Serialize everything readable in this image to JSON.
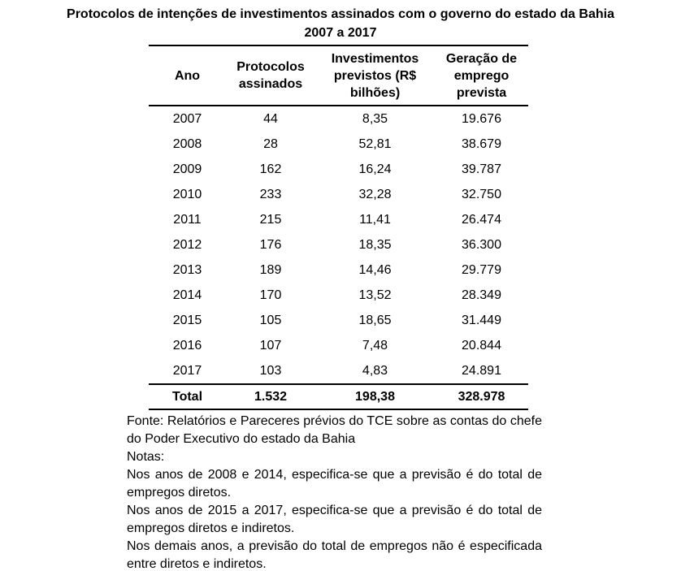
{
  "title": {
    "line1": "Protocolos de intenções de investimentos assinados com o governo do estado da Bahia",
    "line2": "2007 a 2017"
  },
  "chart_data": {
    "type": "table",
    "title": "Protocolos de intenções de investimentos assinados com o governo do estado da Bahia 2007 a 2017",
    "columns": [
      "Ano",
      "Protocolos assinados",
      "Investimentos previstos (R$ bilhões)",
      "Geração de emprego prevista"
    ],
    "rows": [
      [
        "2007",
        "44",
        "8,35",
        "19.676"
      ],
      [
        "2008",
        "28",
        "52,81",
        "38.679"
      ],
      [
        "2009",
        "162",
        "16,24",
        "39.787"
      ],
      [
        "2010",
        "233",
        "32,28",
        "32.750"
      ],
      [
        "2011",
        "215",
        "11,41",
        "26.474"
      ],
      [
        "2012",
        "176",
        "18,35",
        "36.300"
      ],
      [
        "2013",
        "189",
        "14,46",
        "29.779"
      ],
      [
        "2014",
        "170",
        "13,52",
        "28.349"
      ],
      [
        "2015",
        "105",
        "18,65",
        "31.449"
      ],
      [
        "2016",
        "107",
        "7,48",
        "20.844"
      ],
      [
        "2017",
        "103",
        "4,83",
        "24.891"
      ]
    ],
    "total_row": [
      "Total",
      "1.532",
      "198,38",
      "328.978"
    ],
    "source": "Fonte: Relatórios e Pareceres prévios do TCE sobre as contas do chefe do Poder Executivo do estado da Bahia",
    "notes_label": "Notas:",
    "notes": [
      "Nos anos de 2008 e 2014, especifica-se que a previsão é do total de empregos diretos.",
      "Nos anos de 2015 a 2017, especifica-se que a previsão é do total de empregos diretos e indiretos.",
      "Nos demais anos, a previsão do total de empregos não é especificada entre diretos e indiretos."
    ],
    "layout": {
      "grid": false,
      "rules": "horizontal-only",
      "text_color": "#000000",
      "background": "#ffffff"
    }
  }
}
